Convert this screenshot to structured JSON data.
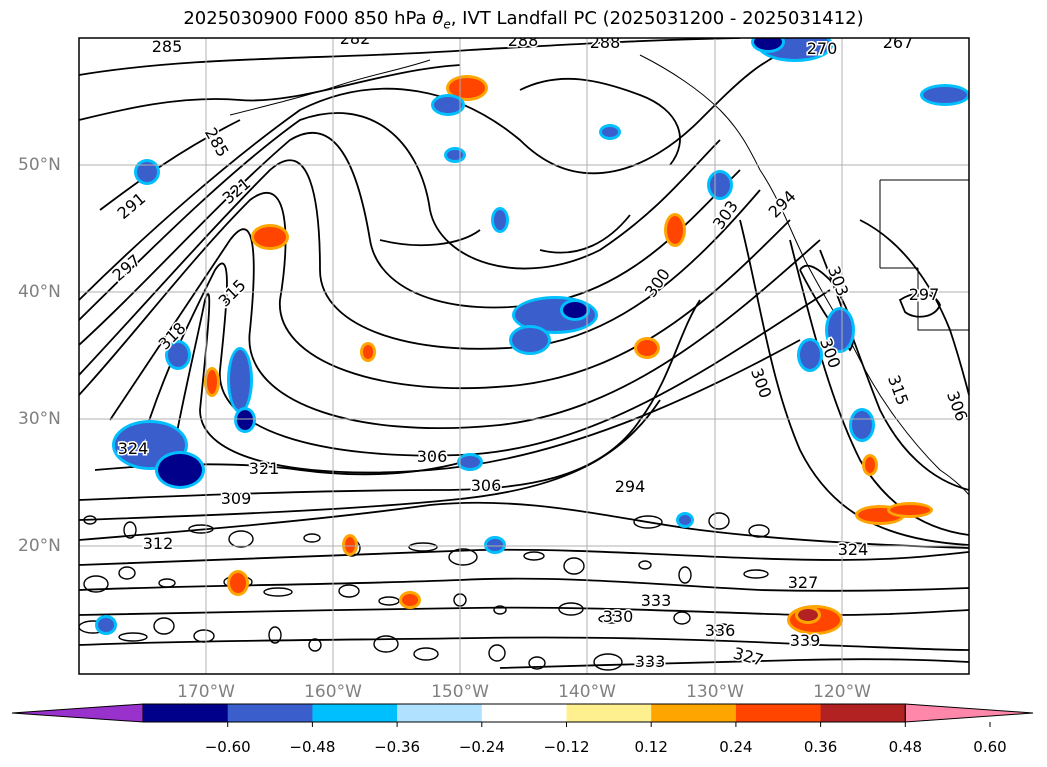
{
  "title": {
    "prefix": "2025030900 F000 850 hPa ",
    "symbol": "θ",
    "symbol_sub": "e",
    "suffix": ", IVT Landfall PC (2025031200 - 2025031412)"
  },
  "map": {
    "projection": "lat-lon",
    "lon_range": [
      -178,
      -108
    ],
    "lat_range": [
      10,
      60
    ],
    "lat_labels": [
      "50°N",
      "40°N",
      "30°N",
      "20°N"
    ],
    "lon_labels": [
      "170°W",
      "160°W",
      "150°W",
      "140°W",
      "130°W",
      "120°W"
    ],
    "gridlines": true,
    "contour_labels": [
      "285",
      "282",
      "288",
      "288",
      "270",
      "267",
      "285",
      "291",
      "297",
      "321",
      "315",
      "318",
      "324",
      "321",
      "309",
      "312",
      "306",
      "306",
      "294",
      "300",
      "303",
      "300",
      "297",
      "294",
      "300",
      "303",
      "306",
      "315",
      "324",
      "327",
      "333",
      "330",
      "336",
      "339",
      "333",
      "327"
    ]
  },
  "colorbar": {
    "ticks": [
      "−0.60",
      "−0.48",
      "−0.36",
      "−0.24",
      "−0.12",
      "0.12",
      "0.24",
      "0.36",
      "0.48",
      "0.60"
    ],
    "colors": [
      "#9932cc",
      "#00008b",
      "#3a5fcd",
      "#00bfff",
      "#b0e2ff",
      "#ffffff",
      "#fff08f",
      "#ffa500",
      "#ff4500",
      "#b22222",
      "#ff88aa"
    ]
  }
}
